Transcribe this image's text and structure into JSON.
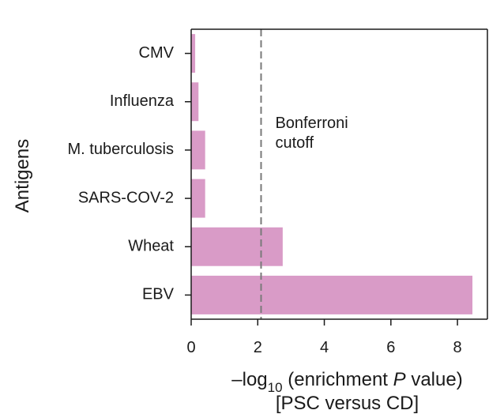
{
  "chart_data": {
    "type": "bar",
    "orientation": "horizontal",
    "categories": [
      "CMV",
      "Influenza",
      "M. tuberculosis",
      "SARS-COV-2",
      "Wheat",
      "EBV"
    ],
    "values": [
      0.12,
      0.22,
      0.42,
      0.42,
      2.75,
      8.45
    ],
    "bar_color": "#d99bc7",
    "xlabel_main": "–log",
    "xlabel_sub": "10",
    "xlabel_rest_pre": " (enrichment ",
    "xlabel_italic": "P",
    "xlabel_rest_post": " value)",
    "xlabel_line2": "[PSC versus CD]",
    "ylabel": "Antigens",
    "xlim": [
      0,
      8.9
    ],
    "xticks": [
      0,
      2,
      4,
      6,
      8
    ],
    "cutoff": {
      "value": 2.1,
      "line1": "Bonferroni",
      "line2": "cutoff"
    },
    "grid": false
  }
}
